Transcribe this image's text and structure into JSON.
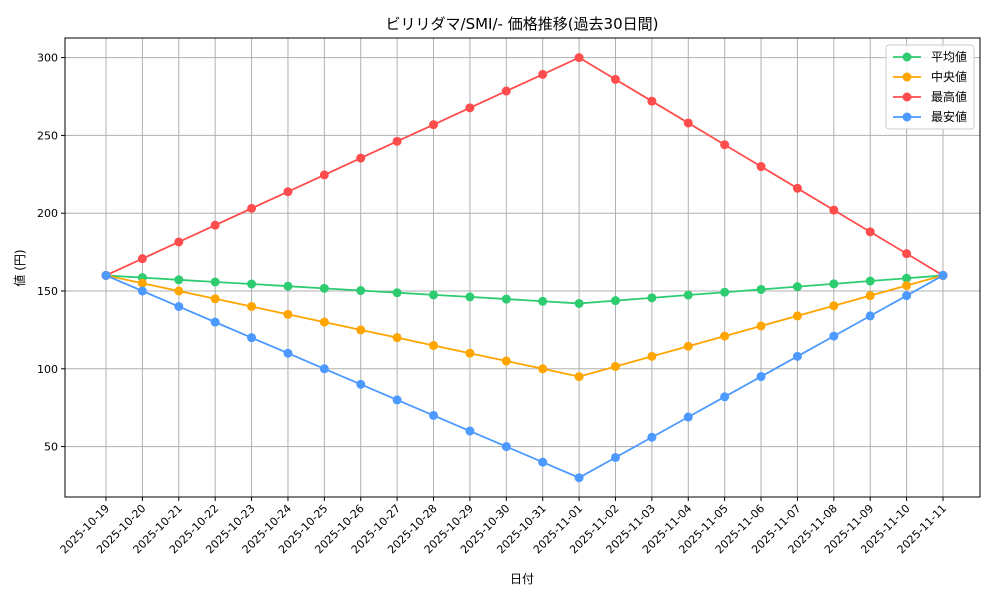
{
  "chart_data": {
    "type": "line",
    "title": "ビリリダマ/SMI/- 価格推移(過去30日間)",
    "xlabel": "日付",
    "ylabel": "値 (円)",
    "ylim": [
      17.6,
      312.6
    ],
    "yticks": [
      50,
      100,
      150,
      200,
      250,
      300
    ],
    "grid": true,
    "legend_position": "top-right",
    "x": [
      "2025-10-19",
      "2025-10-20",
      "2025-10-21",
      "2025-10-22",
      "2025-10-23",
      "2025-10-24",
      "2025-10-25",
      "2025-10-26",
      "2025-10-27",
      "2025-10-28",
      "2025-10-29",
      "2025-10-30",
      "2025-10-31",
      "2025-11-01",
      "2025-11-02",
      "2025-11-03",
      "2025-11-04",
      "2025-11-05",
      "2025-11-06",
      "2025-11-07",
      "2025-11-08",
      "2025-11-09",
      "2025-11-10",
      "2025-11-11"
    ],
    "series": [
      {
        "name": "平均値",
        "color": "#2ecc71",
        "values": [
          160,
          158.6,
          157.2,
          155.8,
          154.5,
          153.1,
          151.7,
          150.3,
          148.9,
          147.5,
          146.2,
          144.8,
          143.4,
          142,
          143.8,
          145.6,
          147.4,
          149.2,
          151,
          152.8,
          154.6,
          156.4,
          158.2,
          160
        ]
      },
      {
        "name": "中央値",
        "color": "#ffa500",
        "values": [
          160,
          155,
          150,
          145,
          140,
          135,
          130,
          125,
          120,
          115,
          110,
          105,
          100,
          95,
          101.5,
          108,
          114.5,
          121,
          127.5,
          134,
          140.5,
          147,
          153.5,
          160
        ]
      },
      {
        "name": "最高値",
        "color": "#ff4c4c",
        "values": [
          160,
          170.8,
          181.5,
          192.3,
          203.1,
          213.8,
          224.6,
          235.4,
          246.2,
          256.9,
          267.7,
          278.5,
          289.2,
          300,
          286,
          272,
          258,
          244,
          230,
          216,
          202,
          188,
          174,
          160
        ]
      },
      {
        "name": "最安値",
        "color": "#4c9aff",
        "values": [
          160,
          150,
          140,
          130,
          120,
          110,
          100,
          90,
          80,
          70,
          60,
          50,
          40,
          30,
          43,
          56,
          69,
          82,
          95,
          108,
          121,
          134,
          147,
          160
        ]
      }
    ]
  }
}
